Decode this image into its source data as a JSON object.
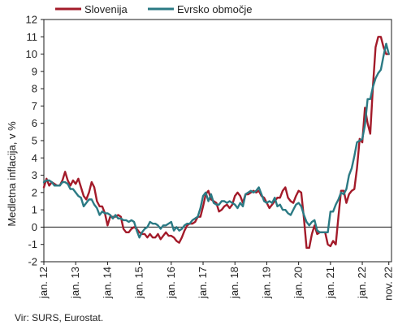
{
  "chart_data": {
    "type": "line",
    "ylabel": "Medletna inflacija, v %",
    "ylim": [
      -2,
      12
    ],
    "yticks": [
      -2,
      -1,
      0,
      1,
      2,
      3,
      4,
      5,
      6,
      7,
      8,
      9,
      10,
      11,
      12
    ],
    "xlim": [
      2012.0,
      2022.917
    ],
    "xticks": [
      {
        "label": "jan. 12",
        "x": 2012.0
      },
      {
        "label": "jan. 13",
        "x": 2013.0
      },
      {
        "label": "jan. 14",
        "x": 2014.0
      },
      {
        "label": "jan. 15",
        "x": 2015.0
      },
      {
        "label": "jan. 16",
        "x": 2016.0
      },
      {
        "label": "jan. 17",
        "x": 2017.0
      },
      {
        "label": "jan. 18",
        "x": 2018.0
      },
      {
        "label": "jan. 19",
        "x": 2019.0
      },
      {
        "label": "jan. 20",
        "x": 2020.0
      },
      {
        "label": "jan. 21",
        "x": 2021.0
      },
      {
        "label": "jan. 22",
        "x": 2022.0
      },
      {
        "label": "nov. 22",
        "x": 2022.833
      }
    ],
    "legend_position": "top-left",
    "zero_line": true,
    "series": [
      {
        "name": "Slovenija",
        "color": "#a31b2a",
        "values": [
          [
            2012.0,
            2.3
          ],
          [
            2012.083,
            2.8
          ],
          [
            2012.167,
            2.4
          ],
          [
            2012.25,
            2.6
          ],
          [
            2012.333,
            2.5
          ],
          [
            2012.417,
            2.4
          ],
          [
            2012.5,
            2.4
          ],
          [
            2012.583,
            2.7
          ],
          [
            2012.667,
            3.2
          ],
          [
            2012.75,
            2.7
          ],
          [
            2012.833,
            2.4
          ],
          [
            2012.917,
            2.7
          ],
          [
            2013.0,
            2.5
          ],
          [
            2013.083,
            2.8
          ],
          [
            2013.167,
            2.3
          ],
          [
            2013.25,
            1.8
          ],
          [
            2013.333,
            1.6
          ],
          [
            2013.417,
            2.0
          ],
          [
            2013.5,
            2.6
          ],
          [
            2013.583,
            2.3
          ],
          [
            2013.667,
            1.5
          ],
          [
            2013.75,
            1.2
          ],
          [
            2013.833,
            1.2
          ],
          [
            2013.917,
            0.8
          ],
          [
            2014.0,
            0.1
          ],
          [
            2014.083,
            0.6
          ],
          [
            2014.167,
            0.6
          ],
          [
            2014.25,
            0.6
          ],
          [
            2014.333,
            0.7
          ],
          [
            2014.417,
            0.6
          ],
          [
            2014.5,
            -0.1
          ],
          [
            2014.583,
            -0.3
          ],
          [
            2014.667,
            -0.3
          ],
          [
            2014.75,
            -0.1
          ],
          [
            2014.833,
            0.0
          ],
          [
            2014.917,
            -0.1
          ],
          [
            2015.0,
            -0.3
          ],
          [
            2015.083,
            -0.4
          ],
          [
            2015.167,
            -0.4
          ],
          [
            2015.25,
            -0.6
          ],
          [
            2015.333,
            -0.4
          ],
          [
            2015.417,
            -0.6
          ],
          [
            2015.5,
            -0.6
          ],
          [
            2015.583,
            -0.4
          ],
          [
            2015.667,
            -0.7
          ],
          [
            2015.75,
            -0.5
          ],
          [
            2015.833,
            -0.3
          ],
          [
            2015.917,
            -0.5
          ],
          [
            2016.0,
            -0.5
          ],
          [
            2016.083,
            -0.6
          ],
          [
            2016.167,
            -0.8
          ],
          [
            2016.25,
            -0.9
          ],
          [
            2016.333,
            -0.6
          ],
          [
            2016.417,
            -0.2
          ],
          [
            2016.5,
            0.1
          ],
          [
            2016.583,
            0.2
          ],
          [
            2016.667,
            0.2
          ],
          [
            2016.75,
            0.3
          ],
          [
            2016.833,
            0.6
          ],
          [
            2016.917,
            0.6
          ],
          [
            2017.0,
            1.2
          ],
          [
            2017.083,
            1.9
          ],
          [
            2017.167,
            2.1
          ],
          [
            2017.25,
            1.6
          ],
          [
            2017.333,
            1.5
          ],
          [
            2017.417,
            1.4
          ],
          [
            2017.5,
            0.9
          ],
          [
            2017.583,
            1.0
          ],
          [
            2017.667,
            1.2
          ],
          [
            2017.75,
            1.3
          ],
          [
            2017.833,
            1.1
          ],
          [
            2017.917,
            1.3
          ],
          [
            2018.0,
            1.8
          ],
          [
            2018.083,
            2.0
          ],
          [
            2018.167,
            1.8
          ],
          [
            2018.25,
            1.4
          ],
          [
            2018.333,
            1.9
          ],
          [
            2018.417,
            1.9
          ],
          [
            2018.5,
            2.0
          ],
          [
            2018.583,
            2.1
          ],
          [
            2018.667,
            2.0
          ],
          [
            2018.75,
            2.1
          ],
          [
            2018.833,
            1.8
          ],
          [
            2018.917,
            1.7
          ],
          [
            2019.0,
            1.4
          ],
          [
            2019.083,
            1.1
          ],
          [
            2019.167,
            1.3
          ],
          [
            2019.25,
            1.5
          ],
          [
            2019.333,
            1.7
          ],
          [
            2019.417,
            1.7
          ],
          [
            2019.5,
            2.1
          ],
          [
            2019.583,
            2.3
          ],
          [
            2019.667,
            1.7
          ],
          [
            2019.75,
            1.5
          ],
          [
            2019.833,
            1.4
          ],
          [
            2019.917,
            1.8
          ],
          [
            2020.0,
            2.1
          ],
          [
            2020.083,
            2.0
          ],
          [
            2020.167,
            0.5
          ],
          [
            2020.25,
            -1.2
          ],
          [
            2020.333,
            -1.2
          ],
          [
            2020.417,
            -0.4
          ],
          [
            2020.5,
            0.1
          ],
          [
            2020.583,
            -0.4
          ],
          [
            2020.667,
            -0.3
          ],
          [
            2020.75,
            -0.3
          ],
          [
            2020.833,
            -0.3
          ],
          [
            2020.917,
            -1.0
          ],
          [
            2021.0,
            -1.1
          ],
          [
            2021.083,
            -0.8
          ],
          [
            2021.167,
            -1.0
          ],
          [
            2021.25,
            0.6
          ],
          [
            2021.333,
            2.1
          ],
          [
            2021.417,
            2.1
          ],
          [
            2021.5,
            1.4
          ],
          [
            2021.583,
            1.9
          ],
          [
            2021.667,
            2.1
          ],
          [
            2021.75,
            2.2
          ],
          [
            2021.833,
            3.4
          ],
          [
            2021.917,
            5.1
          ],
          [
            2022.0,
            4.9
          ],
          [
            2022.083,
            6.9
          ],
          [
            2022.167,
            6.0
          ],
          [
            2022.25,
            5.4
          ],
          [
            2022.333,
            8.1
          ],
          [
            2022.417,
            10.4
          ],
          [
            2022.5,
            11.0
          ],
          [
            2022.583,
            11.0
          ],
          [
            2022.667,
            10.4
          ],
          [
            2022.75,
            10.0
          ],
          [
            2022.833,
            10.0
          ]
        ]
      },
      {
        "name": "Evrsko območje",
        "color": "#2b7a84",
        "values": [
          [
            2012.0,
            2.6
          ],
          [
            2012.083,
            2.7
          ],
          [
            2012.167,
            2.7
          ],
          [
            2012.25,
            2.6
          ],
          [
            2012.333,
            2.4
          ],
          [
            2012.417,
            2.4
          ],
          [
            2012.5,
            2.4
          ],
          [
            2012.583,
            2.6
          ],
          [
            2012.667,
            2.6
          ],
          [
            2012.75,
            2.5
          ],
          [
            2012.833,
            2.2
          ],
          [
            2012.917,
            2.2
          ],
          [
            2013.0,
            2.0
          ],
          [
            2013.083,
            1.8
          ],
          [
            2013.167,
            1.7
          ],
          [
            2013.25,
            1.2
          ],
          [
            2013.333,
            1.4
          ],
          [
            2013.417,
            1.6
          ],
          [
            2013.5,
            1.6
          ],
          [
            2013.583,
            1.3
          ],
          [
            2013.667,
            1.1
          ],
          [
            2013.75,
            0.7
          ],
          [
            2013.833,
            0.9
          ],
          [
            2013.917,
            0.8
          ],
          [
            2014.0,
            0.8
          ],
          [
            2014.083,
            0.7
          ],
          [
            2014.167,
            0.5
          ],
          [
            2014.25,
            0.7
          ],
          [
            2014.333,
            0.5
          ],
          [
            2014.417,
            0.5
          ],
          [
            2014.5,
            0.4
          ],
          [
            2014.583,
            0.4
          ],
          [
            2014.667,
            0.3
          ],
          [
            2014.75,
            0.4
          ],
          [
            2014.833,
            0.3
          ],
          [
            2014.917,
            -0.2
          ],
          [
            2015.0,
            -0.6
          ],
          [
            2015.083,
            -0.3
          ],
          [
            2015.167,
            -0.1
          ],
          [
            2015.25,
            0.0
          ],
          [
            2015.333,
            0.3
          ],
          [
            2015.417,
            0.2
          ],
          [
            2015.5,
            0.2
          ],
          [
            2015.583,
            0.1
          ],
          [
            2015.667,
            -0.1
          ],
          [
            2015.75,
            0.1
          ],
          [
            2015.833,
            0.1
          ],
          [
            2015.917,
            0.2
          ],
          [
            2016.0,
            0.3
          ],
          [
            2016.083,
            -0.2
          ],
          [
            2016.167,
            0.0
          ],
          [
            2016.25,
            -0.2
          ],
          [
            2016.333,
            -0.1
          ],
          [
            2016.417,
            0.1
          ],
          [
            2016.5,
            0.2
          ],
          [
            2016.583,
            0.2
          ],
          [
            2016.667,
            0.4
          ],
          [
            2016.75,
            0.5
          ],
          [
            2016.833,
            0.6
          ],
          [
            2016.917,
            1.1
          ],
          [
            2017.0,
            1.8
          ],
          [
            2017.083,
            2.0
          ],
          [
            2017.167,
            1.5
          ],
          [
            2017.25,
            1.9
          ],
          [
            2017.333,
            1.4
          ],
          [
            2017.417,
            1.3
          ],
          [
            2017.5,
            1.3
          ],
          [
            2017.583,
            1.5
          ],
          [
            2017.667,
            1.5
          ],
          [
            2017.75,
            1.4
          ],
          [
            2017.833,
            1.5
          ],
          [
            2017.917,
            1.4
          ],
          [
            2018.0,
            1.3
          ],
          [
            2018.083,
            1.1
          ],
          [
            2018.167,
            1.4
          ],
          [
            2018.25,
            1.2
          ],
          [
            2018.333,
            1.9
          ],
          [
            2018.417,
            2.0
          ],
          [
            2018.5,
            2.1
          ],
          [
            2018.583,
            2.0
          ],
          [
            2018.667,
            2.1
          ],
          [
            2018.75,
            2.3
          ],
          [
            2018.833,
            1.9
          ],
          [
            2018.917,
            1.5
          ],
          [
            2019.0,
            1.4
          ],
          [
            2019.083,
            1.5
          ],
          [
            2019.167,
            1.4
          ],
          [
            2019.25,
            1.7
          ],
          [
            2019.333,
            1.2
          ],
          [
            2019.417,
            1.3
          ],
          [
            2019.5,
            1.0
          ],
          [
            2019.583,
            1.0
          ],
          [
            2019.667,
            0.8
          ],
          [
            2019.75,
            0.7
          ],
          [
            2019.833,
            1.0
          ],
          [
            2019.917,
            1.3
          ],
          [
            2020.0,
            1.4
          ],
          [
            2020.083,
            1.2
          ],
          [
            2020.167,
            0.7
          ],
          [
            2020.25,
            0.3
          ],
          [
            2020.333,
            0.1
          ],
          [
            2020.417,
            0.3
          ],
          [
            2020.5,
            0.4
          ],
          [
            2020.583,
            -0.2
          ],
          [
            2020.667,
            -0.3
          ],
          [
            2020.75,
            -0.3
          ],
          [
            2020.833,
            -0.3
          ],
          [
            2020.917,
            -0.3
          ],
          [
            2021.0,
            0.9
          ],
          [
            2021.083,
            0.9
          ],
          [
            2021.167,
            1.3
          ],
          [
            2021.25,
            1.6
          ],
          [
            2021.333,
            2.0
          ],
          [
            2021.417,
            1.9
          ],
          [
            2021.5,
            2.2
          ],
          [
            2021.583,
            3.0
          ],
          [
            2021.667,
            3.4
          ],
          [
            2021.75,
            4.1
          ],
          [
            2021.833,
            4.9
          ],
          [
            2021.917,
            5.0
          ],
          [
            2022.0,
            5.1
          ],
          [
            2022.083,
            5.9
          ],
          [
            2022.167,
            7.4
          ],
          [
            2022.25,
            7.4
          ],
          [
            2022.333,
            8.1
          ],
          [
            2022.417,
            8.6
          ],
          [
            2022.5,
            8.9
          ],
          [
            2022.583,
            9.1
          ],
          [
            2022.667,
            9.9
          ],
          [
            2022.75,
            10.6
          ],
          [
            2022.833,
            10.0
          ]
        ]
      }
    ]
  },
  "source": "Vir: SURS, Eurostat."
}
